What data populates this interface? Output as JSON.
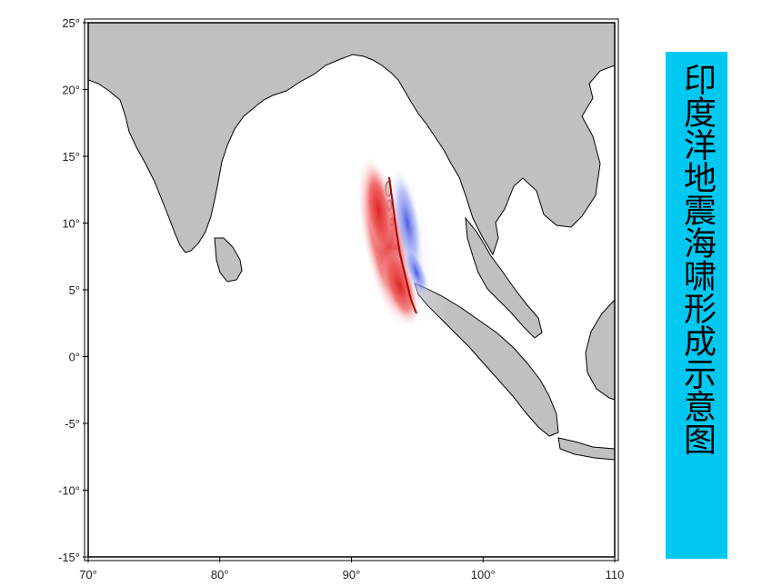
{
  "map": {
    "x_ticks": [
      {
        "value": 70,
        "label": "70°"
      },
      {
        "value": 80,
        "label": "80°"
      },
      {
        "value": 90,
        "label": "90°"
      },
      {
        "value": 100,
        "label": "100°"
      },
      {
        "value": 110,
        "label": "110"
      }
    ],
    "y_ticks": [
      {
        "value": 25,
        "label": "25°"
      },
      {
        "value": 20,
        "label": "20°"
      },
      {
        "value": 15,
        "label": "15°"
      },
      {
        "value": 10,
        "label": "10°"
      },
      {
        "value": 5,
        "label": "5°"
      },
      {
        "value": 0,
        "label": "0°"
      },
      {
        "value": -5,
        "label": "-5°"
      },
      {
        "value": -10,
        "label": "-10°"
      },
      {
        "value": -15,
        "label": "-15°"
      }
    ],
    "lon_range": [
      70,
      110
    ],
    "lat_range": [
      -15,
      25
    ],
    "colors": {
      "land": "#c0c0c0",
      "ocean": "#ffffff",
      "uplift": "#e03030",
      "subsidence": "#3a4fe0",
      "title_bg": "#00c8f0"
    }
  },
  "title": {
    "text": "印度洋地震海啸形成示意图"
  }
}
